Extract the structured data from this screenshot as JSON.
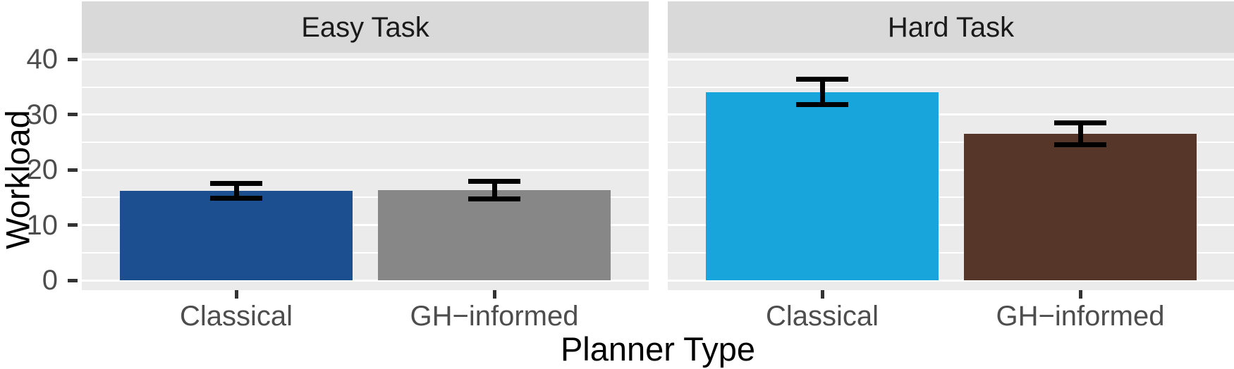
{
  "chart_data": {
    "type": "bar",
    "title": "",
    "xlabel": "Planner Type",
    "ylabel": "Workload",
    "facets": [
      "Easy Task",
      "Hard Task"
    ],
    "categories": [
      "Classical",
      "GH−informed"
    ],
    "yticks": [
      0,
      10,
      20,
      30,
      40
    ],
    "ylim": [
      0,
      41
    ],
    "grid": true,
    "minor_grid": true,
    "legend": false,
    "error_bars": true,
    "panels": [
      {
        "facet": "Easy Task",
        "bars": [
          {
            "category": "Classical",
            "value": 16.2,
            "error_low": 14.9,
            "error_high": 17.5,
            "color": "#1B4F8F"
          },
          {
            "category": "GH−informed",
            "value": 16.3,
            "error_low": 14.7,
            "error_high": 17.9,
            "color": "#878787"
          }
        ]
      },
      {
        "facet": "Hard Task",
        "bars": [
          {
            "category": "Classical",
            "value": 34.0,
            "error_low": 31.8,
            "error_high": 36.4,
            "color": "#18A5DC"
          },
          {
            "category": "GH−informed",
            "value": 26.5,
            "error_low": 24.6,
            "error_high": 28.5,
            "color": "#57362A"
          }
        ]
      }
    ],
    "theme": {
      "figure_background": "#FFFFFF",
      "panel_background": "#EBEBEB",
      "strip_background": "#D9D9D9",
      "gridline_color": "#FFFFFF",
      "errorbar_color": "#000000",
      "tick_color": "#333333",
      "tick_label_color": "#4D4D4D",
      "strip_label_color": "#1A1A1A",
      "axis_title_color": "#000000"
    }
  }
}
